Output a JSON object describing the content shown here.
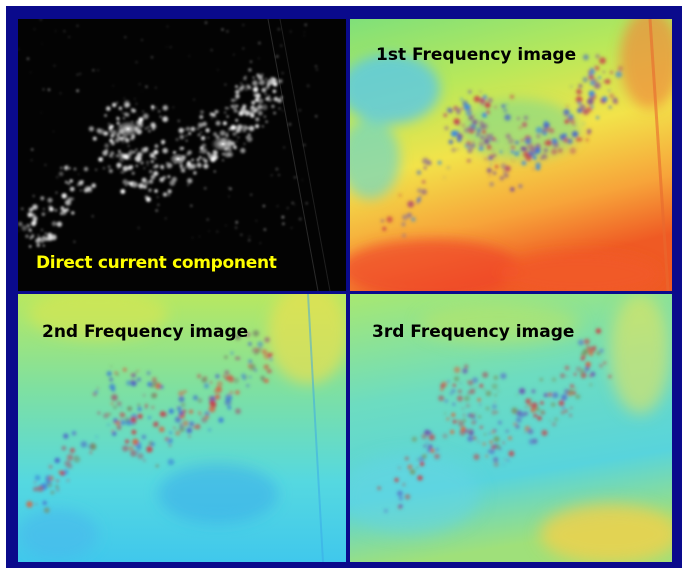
{
  "figure": {
    "border_color": "#0a0a8c",
    "panels": [
      {
        "id": "dc",
        "label": "Direct current component",
        "label_color": "#ffff00",
        "style": "night-lights-grayscale"
      },
      {
        "id": "f1",
        "label": "1st Frequency image",
        "label_color": "#000000",
        "style": "jet-colormap-warm"
      },
      {
        "id": "f2",
        "label": "2nd Frequency image",
        "label_color": "#000000",
        "style": "jet-colormap-cool"
      },
      {
        "id": "f3",
        "label": "3rd Frequency image",
        "label_color": "#000000",
        "style": "jet-colormap-cool"
      }
    ]
  }
}
